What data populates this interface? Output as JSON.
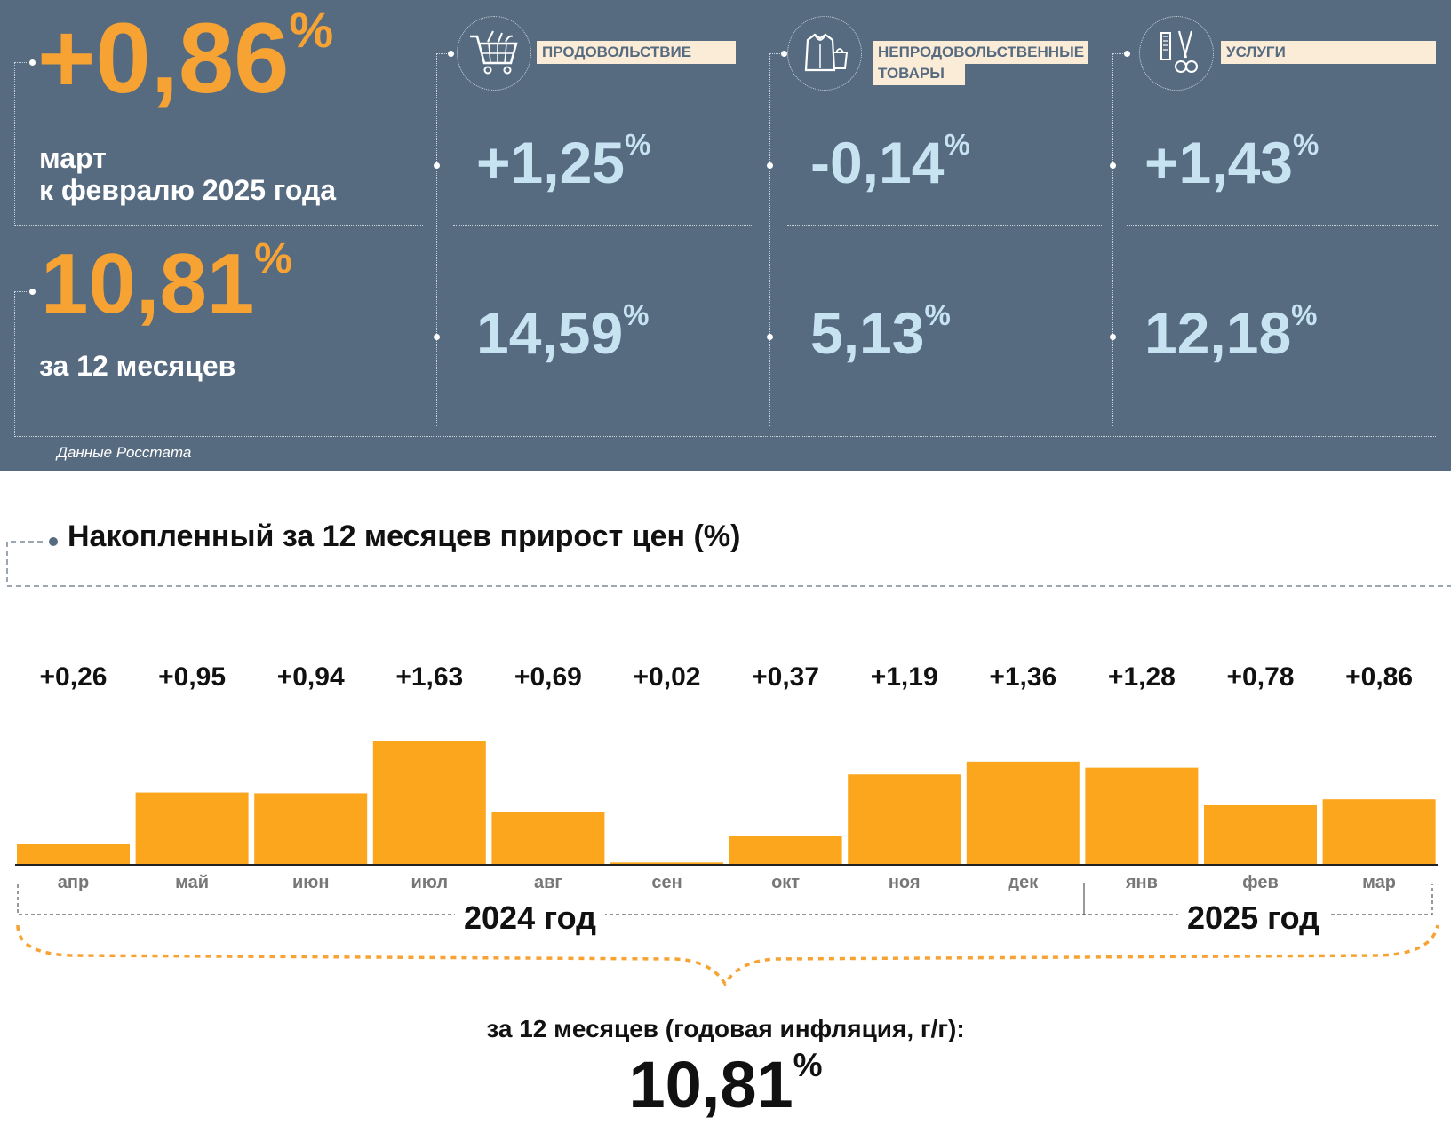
{
  "summary": {
    "monthly": {
      "value": "+0,86",
      "unit": "%",
      "line1": "март",
      "line2": "к февралю 2025 года"
    },
    "annual": {
      "value": "10,81",
      "unit": "%",
      "caption": "за 12 месяцев"
    },
    "source": "Данные Росстата",
    "accent_color": "#f7a334",
    "panel_color": "#566b80",
    "categories": [
      {
        "label": "ПРОДОВОЛЬСТВИЕ",
        "icon": "shopping-cart-icon",
        "monthly": "+1,25",
        "annual": "14,59",
        "unit": "%"
      },
      {
        "label_line1": "НЕПРОДОВОЛЬСТВЕННЫЕ",
        "label_line2": "ТОВАРЫ",
        "icon": "clothing-icon",
        "monthly": "-0,14",
        "annual": "5,13",
        "unit": "%"
      },
      {
        "label": "УСЛУГИ",
        "icon": "scissors-comb-icon",
        "monthly": "+1,43",
        "annual": "12,18",
        "unit": "%"
      }
    ]
  },
  "chart": {
    "title": "Накопленный за 12 месяцев прирост цен (%)",
    "years": [
      "2024 год",
      "2025 год"
    ],
    "total_caption": "за 12 месяцев (годовая инфляция, г/г):",
    "total_value": "10,81",
    "total_unit": "%"
  },
  "chart_data": {
    "type": "bar",
    "title": "Накопленный за 12 месяцев прирост цен (%)",
    "categories": [
      "апр",
      "май",
      "июн",
      "июл",
      "авг",
      "сен",
      "окт",
      "ноя",
      "дек",
      "янв",
      "фев",
      "мар"
    ],
    "values": [
      0.26,
      0.95,
      0.94,
      1.63,
      0.69,
      0.02,
      0.37,
      1.19,
      1.36,
      1.28,
      0.78,
      0.86
    ],
    "labels": [
      "+0,26",
      "+0,95",
      "+0,94",
      "+1,63",
      "+0,69",
      "+0,02",
      "+0,37",
      "+1,19",
      "+1,36",
      "+1,28",
      "+0,78",
      "+0,86"
    ],
    "bar_color": "#fba61d",
    "ylim": [
      0,
      1.63
    ],
    "grid": false
  }
}
